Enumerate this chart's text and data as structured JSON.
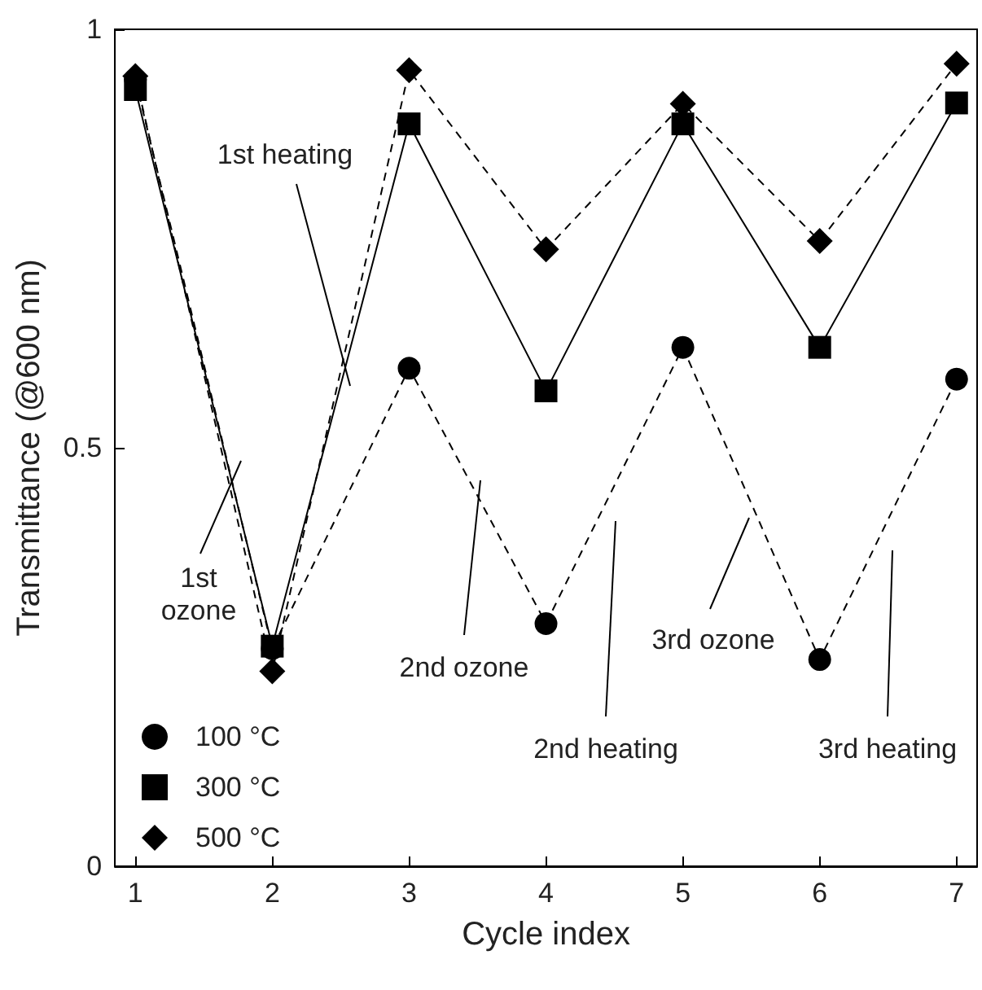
{
  "chart_data": {
    "type": "line",
    "xlabel": "Cycle index",
    "ylabel": "Transmittance (@600 nm)",
    "x": [
      1,
      2,
      3,
      4,
      5,
      6,
      7
    ],
    "series": [
      {
        "name": "100 °C",
        "color": "#000000",
        "marker": "circle",
        "line_style": "dashed",
        "values": [
          0.94,
          0.26,
          0.595,
          0.29,
          0.62,
          0.247,
          0.582
        ]
      },
      {
        "name": "300 °C",
        "color": "#000000",
        "marker": "square",
        "line_style": "solid",
        "values": [
          0.928,
          0.263,
          0.887,
          0.568,
          0.887,
          0.62,
          0.912
        ]
      },
      {
        "name": "500 °C",
        "color": "#000000",
        "marker": "diamond",
        "line_style": "dashed",
        "values": [
          0.944,
          0.233,
          0.951,
          0.737,
          0.911,
          0.747,
          0.959
        ]
      }
    ],
    "xlim": [
      0.85,
      7.15
    ],
    "xticks": [
      1,
      2,
      3,
      4,
      5,
      6,
      7
    ],
    "ylim": [
      0,
      1
    ],
    "yticks": [
      0,
      0.5,
      1
    ],
    "grid": false,
    "legend": "bottom left",
    "annotations": [
      "1st heating",
      "1st\nozone",
      "2nd ozone",
      "2nd heating",
      "3rd ozone",
      "3rd heating"
    ]
  }
}
